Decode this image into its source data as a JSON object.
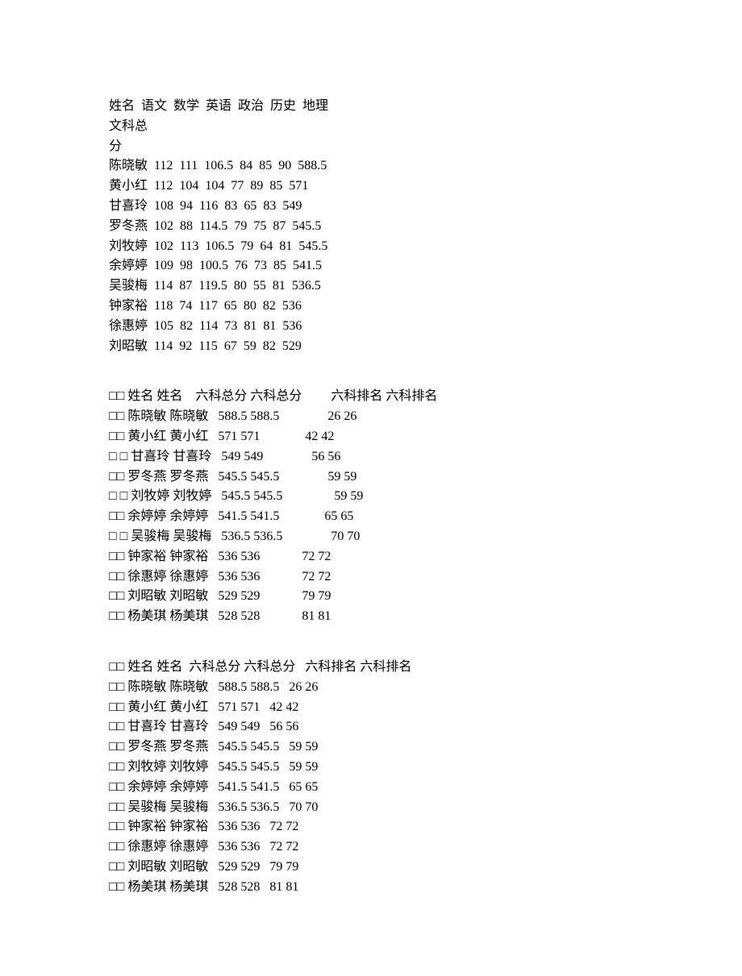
{
  "section1": {
    "header_line1": "姓名  语文  数学  英语  政治  历史  地理",
    "header_line2": "文科总",
    "header_line3": "分",
    "rows": [
      "陈晓敏  112  111  106.5  84  85  90  588.5",
      "黄小红  112  104  104  77  89  85  571",
      "甘喜玲  108  94  116  83  65  83  549",
      "罗冬燕  102  88  114.5  79  75  87  545.5",
      "刘牧婷  102  113  106.5  79  64  81  545.5",
      "余婷婷  109  98  100.5  76  73  85  541.5",
      "吴骏梅  114  87  119.5  80  55  81  536.5",
      "钟家裕  118  74  117  65  80  82  536",
      "徐惠婷  105  82  114  73  81  81  536",
      "刘昭敏  114  92  115  67  59  82  529"
    ]
  },
  "section2": {
    "header": "□□ 姓名 姓名    六科总分 六科总分         六科排名 六科排名",
    "rows": [
      "□□ 陈晓敏 陈晓敏   588.5 588.5               26 26",
      "□□ 黄小红 黄小红   571 571              42 42",
      "□ □ 甘喜玲 甘喜玲   549 549               56 56",
      "□□ 罗冬燕 罗冬燕   545.5 545.5               59 59",
      "□ □ 刘牧婷 刘牧婷   545.5 545.5                59 59",
      "□□ 余婷婷 余婷婷   541.5 541.5              65 65",
      "□ □ 吴骏梅 吴骏梅   536.5 536.5               70 70",
      "□□ 钟家裕 钟家裕   536 536             72 72",
      "□□ 徐惠婷 徐惠婷   536 536             72 72",
      "□□ 刘昭敏 刘昭敏   529 529             79 79",
      "□□ 杨美琪 杨美琪   528 528             81 81"
    ]
  },
  "section3": {
    "header": "□□ 姓名 姓名  六科总分 六科总分   六科排名 六科排名",
    "rows": [
      "□□ 陈晓敏 陈晓敏   588.5 588.5   26 26",
      "□□ 黄小红 黄小红   571 571   42 42",
      "□□ 甘喜玲 甘喜玲   549 549   56 56",
      "□□ 罗冬燕 罗冬燕   545.5 545.5   59 59",
      "□□ 刘牧婷 刘牧婷   545.5 545.5   59 59",
      "□□ 余婷婷 余婷婷   541.5 541.5   65 65",
      "□□ 吴骏梅 吴骏梅   536.5 536.5   70 70",
      "□□ 钟家裕 钟家裕   536 536   72 72",
      "□□ 徐惠婷 徐惠婷   536 536   72 72",
      "□□ 刘昭敏 刘昭敏   529 529   79 79",
      "□□ 杨美琪 杨美琪   528 528   81 81"
    ]
  }
}
